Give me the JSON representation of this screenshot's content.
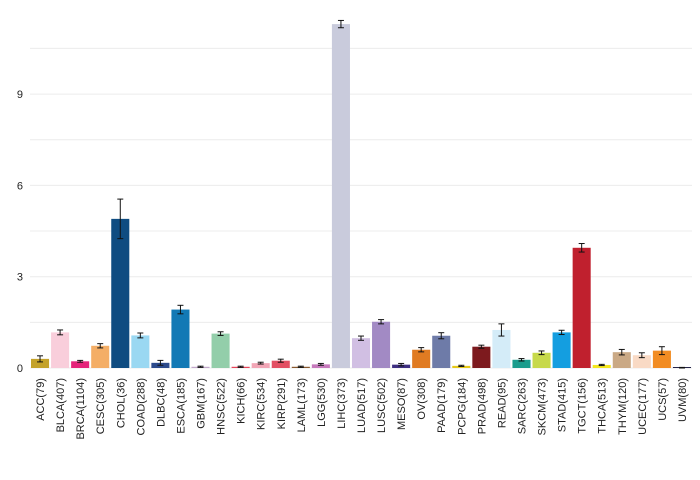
{
  "chart_data": {
    "type": "bar",
    "title": "",
    "xlabel": "",
    "ylabel": "",
    "ylim": [
      0,
      11.5
    ],
    "yticks": [
      0,
      3,
      6,
      9
    ],
    "grid": "horizontal",
    "legend": "none",
    "error_bars": true,
    "categories": [
      "ACC(79)",
      "BLCA(407)",
      "BRCA(1104)",
      "CESC(305)",
      "CHOL(36)",
      "COAD(288)",
      "DLBC(48)",
      "ESCA(185)",
      "GBM(167)",
      "HNSC(522)",
      "KICH(66)",
      "KIRC(534)",
      "KIRP(291)",
      "LAML(173)",
      "LGG(530)",
      "LIHC(373)",
      "LUAD(517)",
      "LUSC(502)",
      "MESO(87)",
      "OV(308)",
      "PAAD(179)",
      "PCPG(184)",
      "PRAD(498)",
      "READ(95)",
      "SARC(263)",
      "SKCM(473)",
      "STAD(415)",
      "TGCT(156)",
      "THCA(513)",
      "THYM(120)",
      "UCEC(177)",
      "UCS(57)",
      "UVM(80)"
    ],
    "values": [
      0.3,
      1.17,
      0.22,
      0.73,
      4.9,
      1.07,
      0.17,
      1.92,
      0.04,
      1.13,
      0.04,
      0.16,
      0.24,
      0.04,
      0.12,
      11.3,
      0.98,
      1.52,
      0.11,
      0.6,
      1.06,
      0.07,
      0.7,
      1.25,
      0.27,
      0.5,
      1.17,
      3.95,
      0.1,
      0.52,
      0.42,
      0.57,
      0.0
    ],
    "errors": [
      0.1,
      0.08,
      0.03,
      0.07,
      0.65,
      0.08,
      0.08,
      0.14,
      0.02,
      0.06,
      0.02,
      0.03,
      0.05,
      0.02,
      0.03,
      0.12,
      0.07,
      0.07,
      0.04,
      0.07,
      0.1,
      0.02,
      0.05,
      0.2,
      0.04,
      0.06,
      0.07,
      0.14,
      0.02,
      0.09,
      0.08,
      0.13,
      0.02
    ],
    "colors": [
      "#c4a22a",
      "#f9cedb",
      "#e5247a",
      "#f4ae66",
      "#0f4c81",
      "#9ad8f2",
      "#2c4a8c",
      "#1279b5",
      "#c2a9cc",
      "#93ceaa",
      "#e8455a",
      "#f2a6b6",
      "#e34f63",
      "#8a5a2f",
      "#c77abd",
      "#c9cbdc",
      "#d1bfe3",
      "#a28ac4",
      "#3e2f82",
      "#e07b22",
      "#6e7ba8",
      "#e6c91a",
      "#7d1a1e",
      "#d4ecf8",
      "#1b9c8c",
      "#c7d94b",
      "#149ee0",
      "#c0202e",
      "#f5e71e",
      "#caa985",
      "#f9dac5",
      "#f28c22",
      "#24244a"
    ]
  }
}
